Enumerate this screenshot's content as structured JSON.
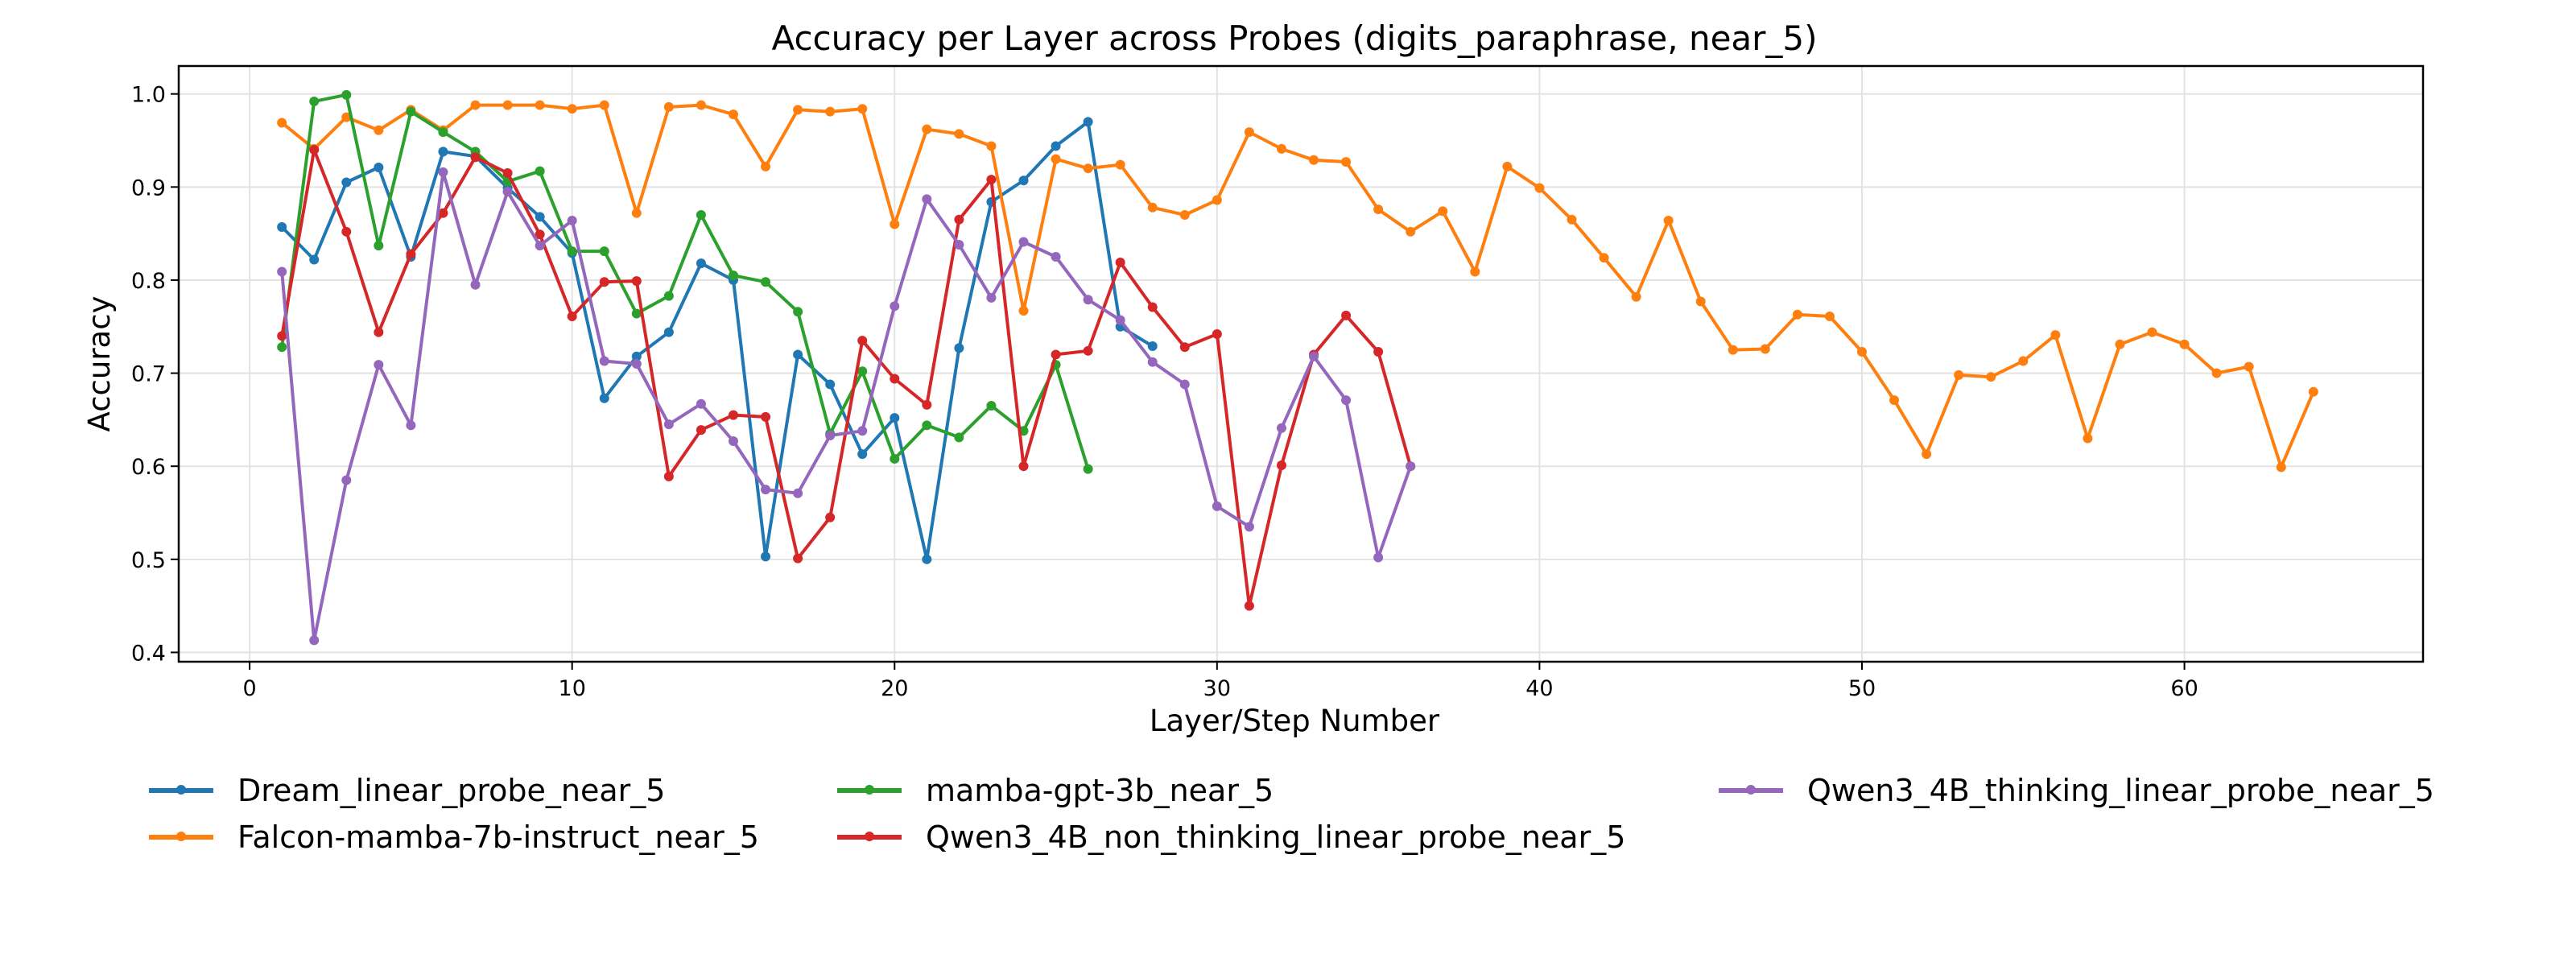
{
  "chart_data": {
    "type": "line",
    "title": "Accuracy per Layer across Probes (digits_paraphrase, near_5)",
    "xlabel": "Layer/Step Number",
    "ylabel": "Accuracy",
    "xlim": [
      -2.2,
      67.4
    ],
    "ylim": [
      0.39,
      1.03
    ],
    "xticks": [
      0,
      10,
      20,
      30,
      40,
      50,
      60
    ],
    "yticks": [
      0.4,
      0.5,
      0.6,
      0.7,
      0.8,
      0.9,
      1.0
    ],
    "grid": true,
    "legend_position": "below",
    "series": [
      {
        "name": "Dream_linear_probe_near_5",
        "color": "#1f77b4",
        "x": [
          1,
          2,
          3,
          4,
          5,
          6,
          7,
          8,
          9,
          10,
          11,
          12,
          13,
          14,
          15,
          16,
          17,
          18,
          19,
          20,
          21,
          22,
          23,
          24,
          25,
          26,
          27,
          28
        ],
        "values": [
          0.857,
          0.822,
          0.905,
          0.921,
          0.825,
          0.938,
          0.933,
          0.899,
          0.868,
          0.829,
          0.673,
          0.718,
          0.744,
          0.818,
          0.8,
          0.503,
          0.72,
          0.688,
          0.613,
          0.652,
          0.5,
          0.727,
          0.884,
          0.907,
          0.944,
          0.97,
          0.75,
          0.729
        ]
      },
      {
        "name": "Falcon-mamba-7b-instruct_near_5",
        "color": "#ff7f0e",
        "x": [
          1,
          2,
          3,
          4,
          5,
          6,
          7,
          8,
          9,
          10,
          11,
          12,
          13,
          14,
          15,
          16,
          17,
          18,
          19,
          20,
          21,
          22,
          23,
          24,
          25,
          26,
          27,
          28,
          29,
          30,
          31,
          32,
          33,
          34,
          35,
          36,
          37,
          38,
          39,
          40,
          41,
          42,
          43,
          44,
          45,
          46,
          47,
          48,
          49,
          50,
          51,
          52,
          53,
          54,
          55,
          56,
          57,
          58,
          59,
          60,
          61,
          62,
          63,
          64
        ],
        "values": [
          0.969,
          0.941,
          0.975,
          0.961,
          0.983,
          0.961,
          0.988,
          0.988,
          0.988,
          0.984,
          0.988,
          0.872,
          0.986,
          0.988,
          0.978,
          0.922,
          0.983,
          0.981,
          0.984,
          0.86,
          0.962,
          0.957,
          0.944,
          0.767,
          0.93,
          0.92,
          0.924,
          0.878,
          0.87,
          0.886,
          0.959,
          0.941,
          0.929,
          0.927,
          0.876,
          0.852,
          0.874,
          0.809,
          0.922,
          0.899,
          0.865,
          0.824,
          0.782,
          0.864,
          0.777,
          0.725,
          0.726,
          0.763,
          0.761,
          0.723,
          0.671,
          0.613,
          0.698,
          0.696,
          0.713,
          0.741,
          0.63,
          0.731,
          0.744,
          0.731,
          0.7,
          0.707,
          0.599,
          0.68
        ]
      },
      {
        "name": "mamba-gpt-3b_near_5",
        "color": "#2ca02c",
        "x": [
          1,
          2,
          3,
          4,
          5,
          6,
          7,
          8,
          9,
          10,
          11,
          12,
          13,
          14,
          15,
          16,
          17,
          18,
          19,
          20,
          21,
          22,
          23,
          24,
          25,
          26
        ],
        "values": [
          0.728,
          0.992,
          0.999,
          0.837,
          0.981,
          0.959,
          0.938,
          0.906,
          0.917,
          0.831,
          0.831,
          0.764,
          0.783,
          0.87,
          0.805,
          0.798,
          0.766,
          0.635,
          0.702,
          0.608,
          0.644,
          0.631,
          0.665,
          0.638,
          0.709,
          0.597
        ]
      },
      {
        "name": "Qwen3_4B_non_thinking_linear_probe_near_5",
        "color": "#d62728",
        "x": [
          1,
          2,
          3,
          4,
          5,
          6,
          7,
          8,
          9,
          10,
          11,
          12,
          13,
          14,
          15,
          16,
          17,
          18,
          19,
          20,
          21,
          22,
          23,
          24,
          25,
          26,
          27,
          28,
          29,
          30,
          31,
          32,
          33,
          34,
          35,
          36
        ],
        "values": [
          0.74,
          0.94,
          0.852,
          0.744,
          0.828,
          0.872,
          0.932,
          0.915,
          0.849,
          0.761,
          0.798,
          0.799,
          0.589,
          0.639,
          0.655,
          0.653,
          0.501,
          0.545,
          0.735,
          0.694,
          0.666,
          0.865,
          0.908,
          0.6,
          0.72,
          0.724,
          0.819,
          0.771,
          0.728,
          0.742,
          0.45,
          0.601,
          0.72,
          0.762,
          0.723,
          0.6
        ]
      },
      {
        "name": "Qwen3_4B_thinking_linear_probe_near_5",
        "color": "#9467bd",
        "x": [
          1,
          2,
          3,
          4,
          5,
          6,
          7,
          8,
          9,
          10,
          11,
          12,
          13,
          14,
          15,
          16,
          17,
          18,
          19,
          20,
          21,
          22,
          23,
          24,
          25,
          26,
          27,
          28,
          29,
          30,
          31,
          32,
          33,
          34,
          35,
          36
        ],
        "values": [
          0.809,
          0.413,
          0.585,
          0.709,
          0.644,
          0.916,
          0.795,
          0.895,
          0.837,
          0.864,
          0.713,
          0.71,
          0.645,
          0.667,
          0.627,
          0.575,
          0.571,
          0.633,
          0.638,
          0.772,
          0.887,
          0.838,
          0.781,
          0.841,
          0.825,
          0.779,
          0.757,
          0.712,
          0.688,
          0.557,
          0.535,
          0.641,
          0.718,
          0.671,
          0.502,
          0.6
        ]
      }
    ]
  }
}
